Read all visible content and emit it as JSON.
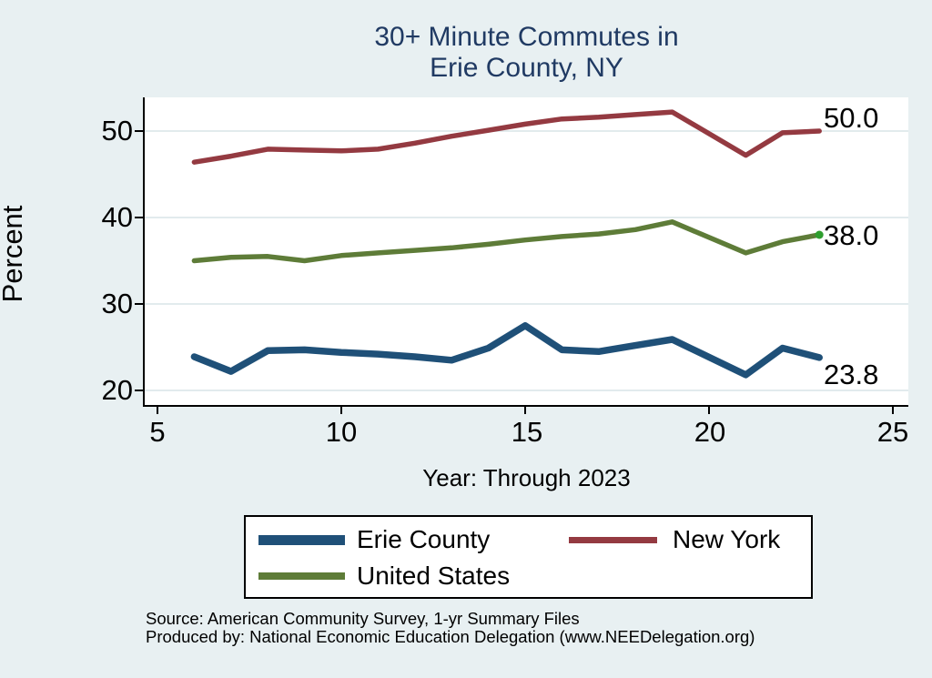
{
  "chart": {
    "title_line1": "30+ Minute Commutes in",
    "title_line2": "Erie County, NY",
    "y_axis_title": "Percent",
    "x_axis_title": "Year: Through 2023"
  },
  "footer": {
    "source_line": "Source: American Community Survey, 1-yr Summary Files",
    "produced_line": "Produced by: National Economic Education Delegation (www.NEEDelegation.org)"
  },
  "chart_data": {
    "type": "line",
    "title": "30+ Minute Commutes in Erie County, NY",
    "xlabel": "Year: Through 2023",
    "ylabel": "Percent",
    "x_ticks": [
      5,
      10,
      15,
      20,
      25
    ],
    "y_ticks": [
      20,
      30,
      40,
      50
    ],
    "xlim": [
      4.6,
      25.4
    ],
    "ylim": [
      18.3,
      53.8
    ],
    "grid": "horizontal",
    "legend_position": "bottom",
    "background_color": "#e8f0f2",
    "plot_background_color": "#ffffff",
    "gridline_color": "#e2ebed",
    "title_color": "#203a63",
    "x": [
      6,
      7,
      8,
      9,
      10,
      11,
      12,
      13,
      14,
      15,
      16,
      17,
      18,
      19,
      21,
      22,
      23
    ],
    "series": [
      {
        "name": "Erie County",
        "color": "#1f5078",
        "end_label": "23.8",
        "values": [
          23.9,
          22.2,
          24.6,
          24.7,
          24.4,
          24.2,
          23.9,
          23.5,
          24.9,
          27.5,
          24.7,
          24.5,
          25.2,
          25.9,
          21.8,
          24.9,
          23.8
        ]
      },
      {
        "name": "New York",
        "color": "#943a41",
        "end_label": "50.0",
        "values": [
          46.4,
          47.1,
          47.9,
          47.8,
          47.7,
          47.9,
          48.6,
          49.4,
          50.1,
          50.8,
          51.4,
          51.6,
          51.9,
          52.2,
          47.2,
          49.8,
          50.0
        ]
      },
      {
        "name": "United States",
        "color": "#5e7c38",
        "end_label": "38.0",
        "end_marker_color": "#2e9e2e",
        "values": [
          35.0,
          35.4,
          35.5,
          35.0,
          35.6,
          35.9,
          36.2,
          36.5,
          36.9,
          37.4,
          37.8,
          38.1,
          38.6,
          39.5,
          35.9,
          37.2,
          38.0
        ]
      }
    ]
  }
}
